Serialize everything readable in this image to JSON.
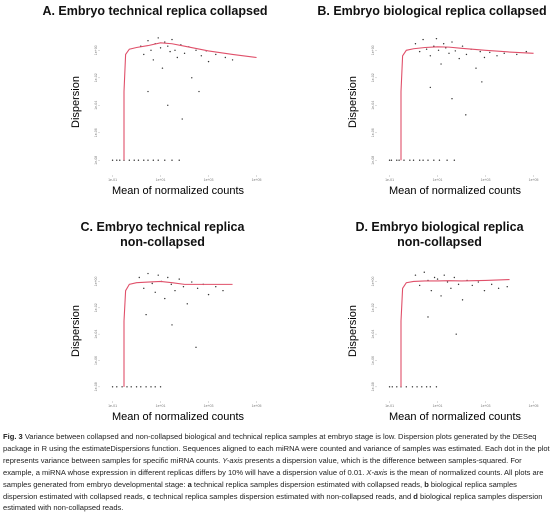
{
  "chart_data": [
    {
      "type": "scatter",
      "title": "A. Embryo technical replica collapsed",
      "xlabel": "Mean of normalized counts",
      "ylabel": "Dispersion",
      "log_x": true,
      "log_y": true,
      "color": "#333333",
      "fit_color": "#e0506a",
      "xlim": [
        0.03,
        300000
      ],
      "ylim": [
        1e-09,
        30
      ],
      "xticks": [
        {
          "value": 0.1,
          "label": "1e-01"
        },
        {
          "value": 10,
          "label": "1e+01"
        },
        {
          "value": 1000,
          "label": "1e+03"
        },
        {
          "value": 100000,
          "label": "1e+05"
        }
      ],
      "yticks": [
        {
          "value": 1e-08,
          "label": "1e-08"
        },
        {
          "value": 1e-06,
          "label": "1e-06"
        },
        {
          "value": 0.0001,
          "label": "1e-04"
        },
        {
          "value": 0.01,
          "label": "1e-02"
        },
        {
          "value": 1,
          "label": "1e+00"
        }
      ],
      "x": [
        0.1,
        0.15,
        0.2,
        0.3,
        0.5,
        0.8,
        1.2,
        2,
        3,
        5,
        8,
        15,
        30,
        60,
        1.5,
        2,
        3,
        4,
        5,
        6,
        8,
        10,
        12,
        15,
        20,
        25,
        30,
        40,
        50,
        70,
        100,
        150,
        200,
        300,
        500,
        800,
        1000,
        2000,
        5000,
        10000,
        3,
        20,
        80,
        400
      ],
      "values": [
        1e-08,
        1e-08,
        1e-08,
        1e-08,
        1e-08,
        1e-08,
        1e-08,
        1e-08,
        1e-08,
        1e-08,
        1e-08,
        1e-08,
        1e-08,
        1e-08,
        2,
        0.5,
        5,
        1,
        0.2,
        3,
        8,
        1.5,
        0.05,
        4,
        2,
        0.8,
        6,
        1,
        0.3,
        2.5,
        0.6,
        1.8,
        0.01,
        1,
        0.4,
        0.9,
        0.15,
        0.5,
        0.3,
        0.2,
        0.001,
        0.0001,
        1e-05,
        0.001
      ],
      "fit_x": [
        0.3,
        0.3,
        0.35,
        0.5,
        1,
        3,
        10,
        30,
        100,
        1000,
        10000,
        100000
      ],
      "fit_values": [
        1e-08,
        0.001,
        0.5,
        1.2,
        1.6,
        2.2,
        3.5,
        3,
        2,
        0.9,
        0.5,
        0.3
      ]
    },
    {
      "type": "scatter",
      "title": "B. Embryo biological replica collapsed",
      "xlabel": "Mean of normalized counts",
      "ylabel": "Dispersion",
      "log_x": true,
      "log_y": true,
      "color": "#333333",
      "fit_color": "#e0506a",
      "xlim": [
        0.03,
        300000
      ],
      "ylim": [
        1e-09,
        30
      ],
      "xticks": [
        {
          "value": 0.1,
          "label": "1e-01"
        },
        {
          "value": 10,
          "label": "1e+01"
        },
        {
          "value": 1000,
          "label": "1e+03"
        },
        {
          "value": 100000,
          "label": "1e+05"
        }
      ],
      "yticks": [
        {
          "value": 1e-08,
          "label": "1e-08"
        },
        {
          "value": 1e-06,
          "label": "1e-06"
        },
        {
          "value": 0.0001,
          "label": "1e-04"
        },
        {
          "value": 0.01,
          "label": "1e-02"
        },
        {
          "value": 1,
          "label": "1e+00"
        }
      ],
      "x": [
        0.1,
        0.12,
        0.2,
        0.25,
        0.4,
        0.7,
        1,
        1.8,
        2.5,
        4,
        7,
        12,
        25,
        50,
        1.2,
        1.8,
        2.5,
        3.5,
        5,
        7,
        9,
        11,
        14,
        18,
        22,
        30,
        40,
        55,
        80,
        110,
        160,
        250,
        400,
        600,
        900,
        1500,
        3000,
        6000,
        20000,
        50000,
        5,
        40,
        150,
        700
      ],
      "values": [
        1e-08,
        1e-08,
        1e-08,
        1e-08,
        1e-08,
        1e-08,
        1e-08,
        1e-08,
        1e-08,
        1e-08,
        1e-08,
        1e-08,
        1e-08,
        1e-08,
        3,
        0.8,
        6,
        1.2,
        0.4,
        2,
        7,
        1,
        0.1,
        3,
        1.5,
        0.6,
        4,
        0.9,
        0.25,
        2,
        0.5,
        1.2,
        0.05,
        0.8,
        0.3,
        0.7,
        0.4,
        0.6,
        0.5,
        0.8,
        0.002,
        0.0003,
        2e-05,
        0.005
      ],
      "fit_x": [
        0.3,
        0.3,
        0.35,
        0.5,
        1,
        3,
        10,
        30,
        100,
        1000,
        10000,
        100000
      ],
      "fit_values": [
        1e-08,
        0.001,
        0.4,
        1,
        1.3,
        1.6,
        1.8,
        1.7,
        1.4,
        1,
        0.75,
        0.6
      ]
    },
    {
      "type": "scatter",
      "title": "C. Embryo technical replica non-collapsed",
      "xlabel": "Mean of normalized counts",
      "ylabel": "Dispersion",
      "log_x": true,
      "log_y": true,
      "color": "#333333",
      "fit_color": "#e0506a",
      "xlim": [
        0.03,
        300000
      ],
      "ylim": [
        1e-09,
        30
      ],
      "xticks": [
        {
          "value": 0.1,
          "label": "1e-01"
        },
        {
          "value": 10,
          "label": "1e+01"
        },
        {
          "value": 1000,
          "label": "1e+03"
        },
        {
          "value": 100000,
          "label": "1e+05"
        }
      ],
      "yticks": [
        {
          "value": 1e-08,
          "label": "1e-08"
        },
        {
          "value": 1e-06,
          "label": "1e-06"
        },
        {
          "value": 0.0001,
          "label": "1e-04"
        },
        {
          "value": 0.01,
          "label": "1e-02"
        },
        {
          "value": 1,
          "label": "1e+00"
        }
      ],
      "x": [
        0.1,
        0.15,
        0.25,
        0.4,
        0.6,
        1,
        1.5,
        2.5,
        4,
        6,
        10,
        1.3,
        2,
        3,
        4.5,
        6,
        8,
        11,
        15,
        20,
        28,
        40,
        60,
        90,
        130,
        200,
        350,
        600,
        1000,
        2000,
        4000,
        2.5,
        30,
        300
      ],
      "values": [
        1e-08,
        1e-08,
        1e-08,
        1e-08,
        1e-08,
        1e-08,
        1e-08,
        1e-08,
        1e-08,
        1e-08,
        1e-08,
        2,
        0.3,
        4,
        0.7,
        0.15,
        3,
        1,
        0.05,
        2,
        0.6,
        0.2,
        1.5,
        0.4,
        0.02,
        0.9,
        0.3,
        0.6,
        0.1,
        0.4,
        0.2,
        0.003,
        0.0005,
        1e-05
      ],
      "fit_x": [
        0.3,
        0.3,
        0.35,
        0.5,
        1,
        3,
        10,
        30,
        100,
        1000,
        10000
      ],
      "fit_values": [
        1e-08,
        0.001,
        0.2,
        0.6,
        0.8,
        0.9,
        1,
        0.8,
        0.6,
        0.6,
        0.6
      ]
    },
    {
      "type": "scatter",
      "title": "D. Embryo biological replica non-collapsed",
      "xlabel": "Mean of normalized counts",
      "ylabel": "Dispersion",
      "log_x": true,
      "log_y": true,
      "color": "#333333",
      "fit_color": "#e0506a",
      "xlim": [
        0.03,
        300000
      ],
      "ylim": [
        1e-09,
        30
      ],
      "xticks": [
        {
          "value": 0.1,
          "label": "1e-01"
        },
        {
          "value": 10,
          "label": "1e+01"
        },
        {
          "value": 1000,
          "label": "1e+03"
        },
        {
          "value": 100000,
          "label": "1e+05"
        }
      ],
      "yticks": [
        {
          "value": 1e-08,
          "label": "1e-08"
        },
        {
          "value": 1e-06,
          "label": "1e-06"
        },
        {
          "value": 0.0001,
          "label": "1e-04"
        },
        {
          "value": 0.01,
          "label": "1e-02"
        },
        {
          "value": 1,
          "label": "1e+00"
        }
      ],
      "x": [
        0.1,
        0.13,
        0.2,
        0.3,
        0.5,
        0.9,
        1.4,
        2.2,
        3.5,
        5,
        9,
        1.2,
        1.8,
        2.8,
        4,
        5.5,
        7.5,
        10,
        14,
        19,
        26,
        36,
        50,
        75,
        110,
        170,
        280,
        500,
        900,
        1800,
        3500,
        8000,
        4,
        60
      ],
      "values": [
        1e-08,
        1e-08,
        1e-08,
        1e-08,
        1e-08,
        1e-08,
        1e-08,
        1e-08,
        1e-08,
        1e-08,
        1e-08,
        3,
        0.5,
        5,
        1.2,
        0.2,
        2,
        1.5,
        0.08,
        3,
        0.9,
        0.3,
        2,
        0.6,
        0.04,
        1.2,
        0.5,
        0.9,
        0.2,
        0.6,
        0.3,
        0.4,
        0.002,
        0.0001
      ],
      "fit_x": [
        0.3,
        0.3,
        0.35,
        0.5,
        1,
        3,
        10,
        30,
        100,
        1000,
        10000
      ],
      "fit_values": [
        1e-08,
        0.001,
        0.3,
        0.8,
        1,
        1.1,
        1.1,
        1.15,
        1.1,
        1.2,
        1.4
      ]
    }
  ],
  "caption": [
    "Fig. 3",
    " Variance between collapsed and non-collapsed biological and technical replica samples at embryo stage is low. Dispersion plots generated by the DESeq package in R using the estimateDispersions function. Sequences aligned to each miRNA were counted and variance of samples was estimated. Each dot in the plot represents variance between samples for specific miRNA counts. ",
    "Y-axis",
    " presents a dispersion value, which is the difference between samples-squared. For example, a miRNA whose expression in different replicas differs by 10% will have a dispersion value of 0.01. ",
    "X-axis",
    " is the mean of normalized counts. All plots are samples generated from embryo developmental stage: ",
    "a",
    " technical replica samples dispersion estimated with collapsed reads, ",
    "b",
    " biological replica samples dispersion estimated with collapsed reads, ",
    "c",
    " technical replica samples dispersion estimated with non-collapsed reads, and ",
    "d",
    " biological replica samples dispersion estimated with non-collapsed reads."
  ]
}
